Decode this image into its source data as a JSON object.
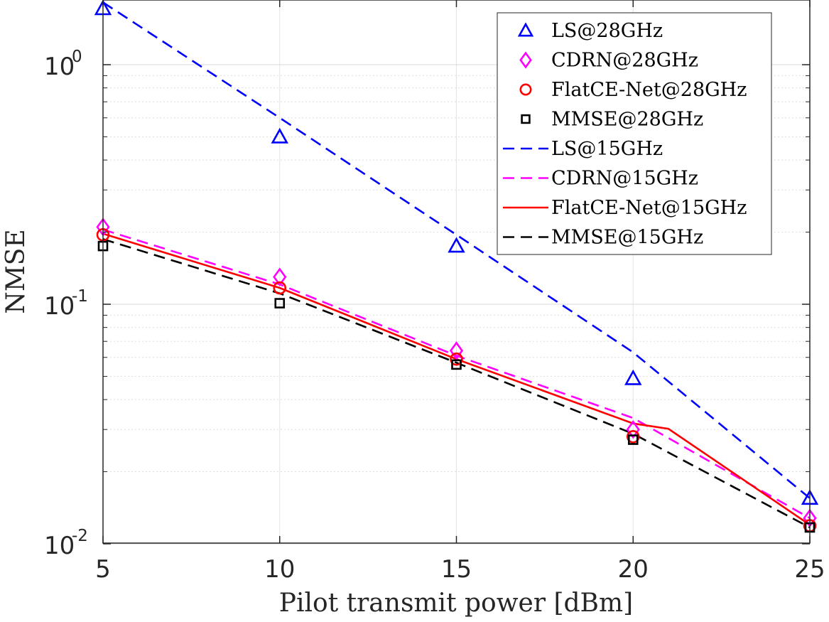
{
  "chart_data": {
    "type": "line",
    "xlabel": "Pilot transmit power [dBm]",
    "ylabel": "NMSE",
    "xlim": [
      5,
      25
    ],
    "ylim": [
      0.01,
      1.8
    ],
    "yscale": "log",
    "grid": true,
    "legend_position": "top-right",
    "x_ticks": [
      "5",
      "10",
      "15",
      "20",
      "25"
    ],
    "y_ticks": [
      {
        "value": 1,
        "base": "10",
        "exp": "0"
      },
      {
        "value": 0.1,
        "base": "10",
        "exp": "-1"
      },
      {
        "value": 0.01,
        "base": "10",
        "exp": "-2"
      }
    ],
    "series": [
      {
        "name": "LS@28GHz",
        "style": "marker",
        "marker": "triangle",
        "color": "#0000ff",
        "x": [
          5,
          10,
          15,
          20,
          25
        ],
        "y": [
          1.75,
          0.5,
          0.175,
          0.049,
          0.0155
        ]
      },
      {
        "name": "CDRN@28GHz",
        "style": "marker",
        "marker": "diamond",
        "color": "#ff00ff",
        "x": [
          5,
          10,
          15,
          20,
          25
        ],
        "y": [
          0.21,
          0.13,
          0.064,
          0.03,
          0.0128
        ]
      },
      {
        "name": "FlatCE-Net@28GHz",
        "style": "marker",
        "marker": "circle",
        "color": "#ff0000",
        "x": [
          5,
          10,
          15,
          20,
          25
        ],
        "y": [
          0.195,
          0.117,
          0.059,
          0.028,
          0.0119
        ]
      },
      {
        "name": "MMSE@28GHz",
        "style": "marker",
        "marker": "square",
        "color": "#000000",
        "x": [
          5,
          10,
          15,
          20,
          25
        ],
        "y": [
          0.175,
          0.101,
          0.056,
          0.0272,
          0.0117
        ]
      },
      {
        "name": "LS@15GHz",
        "style": "dashed",
        "color": "#0000ff",
        "x": [
          5,
          10,
          15,
          20,
          25
        ],
        "y": [
          1.82,
          0.6,
          0.195,
          0.063,
          0.0155
        ]
      },
      {
        "name": "CDRN@15GHz",
        "style": "dashed",
        "color": "#ff00ff",
        "x": [
          5,
          10,
          15,
          20,
          25
        ],
        "y": [
          0.205,
          0.121,
          0.061,
          0.0335,
          0.0128
        ]
      },
      {
        "name": "FlatCE-Net@15GHz",
        "style": "solid",
        "color": "#ff0000",
        "x": [
          5,
          10,
          15,
          20,
          21,
          25
        ],
        "y": [
          0.197,
          0.117,
          0.059,
          0.0318,
          0.0302,
          0.012
        ]
      },
      {
        "name": "MMSE@15GHz",
        "style": "dashed",
        "color": "#000000",
        "x": [
          5,
          10,
          15,
          20,
          25
        ],
        "y": [
          0.187,
          0.111,
          0.057,
          0.0288,
          0.0117
        ]
      }
    ]
  }
}
